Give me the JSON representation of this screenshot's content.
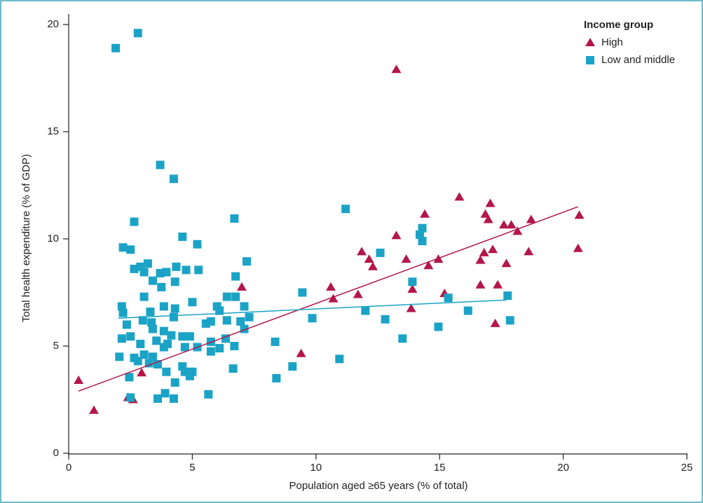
{
  "chart_data": {
    "type": "scatter",
    "xlabel": "Population aged ≥65 years (% of total)",
    "ylabel": "Total health expenditure (% of GDP)",
    "legend_title": "Income group",
    "legend": "upper right",
    "xlim": [
      0,
      25
    ],
    "xticks": [
      0,
      5,
      10,
      15,
      20,
      25
    ],
    "ylim": [
      0,
      20
    ],
    "yticks": [
      0,
      5,
      10,
      15,
      20
    ],
    "series": [
      {
        "name": "High",
        "color": "#b3174a",
        "marker": "triangle",
        "x": [
          0.4,
          1.02,
          2.95,
          2.6,
          2.4,
          7.0,
          9.4,
          10.6,
          10.7,
          11.7,
          11.85,
          12.15,
          12.3,
          13.25,
          13.25,
          13.65,
          13.9,
          13.85,
          14.4,
          14.55,
          14.95,
          15.2,
          15.8,
          16.65,
          16.65,
          16.8,
          16.85,
          16.97,
          17.05,
          17.15,
          17.25,
          17.35,
          17.6,
          17.7,
          17.9,
          18.15,
          18.6,
          18.7,
          20.6,
          20.65
        ],
        "y": [
          3.4,
          2.0,
          3.75,
          2.5,
          2.6,
          7.75,
          4.65,
          7.75,
          7.2,
          7.4,
          9.4,
          9.05,
          8.7,
          10.15,
          17.9,
          9.05,
          7.65,
          6.75,
          11.15,
          8.75,
          9.05,
          7.45,
          11.95,
          9.0,
          7.85,
          9.35,
          11.15,
          10.9,
          11.65,
          9.5,
          6.05,
          7.85,
          10.65,
          8.85,
          10.65,
          10.35,
          9.4,
          10.9,
          9.55,
          11.1
        ],
        "trend_x": [
          0.4,
          20.6
        ],
        "trend_y": [
          2.9,
          11.5
        ]
      },
      {
        "name": "Low and middle",
        "color": "#1ba3c6",
        "marker": "square",
        "x": [
          1.9,
          2.8,
          3.7,
          4.25,
          2.65,
          2.2,
          2.5,
          4.6,
          5.2,
          6.7,
          11.2,
          2.65,
          2.9,
          3.2,
          3.05,
          3.7,
          3.95,
          4.75,
          5.25,
          4.35,
          3.4,
          4.3,
          3.75,
          7.2,
          6.75,
          2.15,
          2.2,
          3.05,
          5.0,
          6.4,
          6.75,
          7.1,
          7.3,
          3.85,
          4.3,
          3.3,
          6.0,
          6.1,
          2.35,
          3.0,
          3.35,
          4.25,
          5.55,
          5.75,
          6.95,
          7.1,
          6.4,
          3.4,
          3.85,
          4.15,
          4.6,
          2.15,
          2.5,
          2.9,
          3.55,
          4.0,
          4.9,
          5.75,
          6.35,
          6.7,
          6.1,
          3.05,
          2.05,
          2.65,
          2.8,
          3.25,
          3.6,
          3.4,
          3.85,
          4.7,
          5.2,
          4.6,
          4.7,
          5.0,
          4.9,
          3.95,
          4.3,
          2.45,
          5.75,
          6.65,
          8.35,
          8.4,
          9.05,
          9.45,
          9.85,
          10.95,
          12.0,
          12.6,
          12.8,
          13.5,
          13.9,
          14.2,
          14.3,
          14.3,
          14.95,
          15.35,
          16.15,
          17.75,
          17.85,
          2.5,
          3.6,
          3.9,
          4.25,
          5.65
        ],
        "y": [
          18.9,
          19.6,
          13.45,
          12.8,
          10.8,
          9.6,
          9.5,
          10.1,
          9.75,
          10.95,
          11.4,
          8.6,
          8.7,
          8.85,
          8.45,
          8.4,
          8.45,
          8.55,
          8.55,
          8.7,
          8.05,
          8.0,
          7.75,
          8.95,
          8.25,
          6.85,
          6.55,
          7.3,
          7.05,
          7.3,
          7.3,
          6.85,
          6.35,
          6.85,
          6.75,
          6.6,
          6.85,
          6.65,
          6.0,
          6.2,
          6.1,
          6.35,
          6.05,
          6.15,
          6.15,
          5.8,
          6.2,
          5.8,
          5.7,
          5.5,
          5.45,
          5.35,
          5.45,
          5.1,
          5.25,
          5.1,
          5.45,
          5.2,
          5.35,
          5.0,
          4.9,
          4.6,
          4.5,
          4.45,
          4.3,
          4.2,
          4.15,
          4.5,
          4.95,
          4.95,
          4.95,
          4.05,
          3.8,
          3.8,
          3.6,
          3.8,
          3.3,
          3.55,
          4.75,
          3.95,
          5.2,
          3.5,
          4.05,
          7.5,
          6.3,
          4.4,
          6.65,
          9.35,
          6.25,
          5.35,
          8.0,
          10.2,
          10.5,
          9.9,
          5.9,
          7.25,
          6.65,
          7.35,
          6.2,
          2.6,
          2.55,
          2.8,
          2.55,
          2.75
        ],
        "trend_x": [
          2.0,
          17.7
        ],
        "trend_y": [
          6.3,
          7.15
        ]
      }
    ]
  }
}
